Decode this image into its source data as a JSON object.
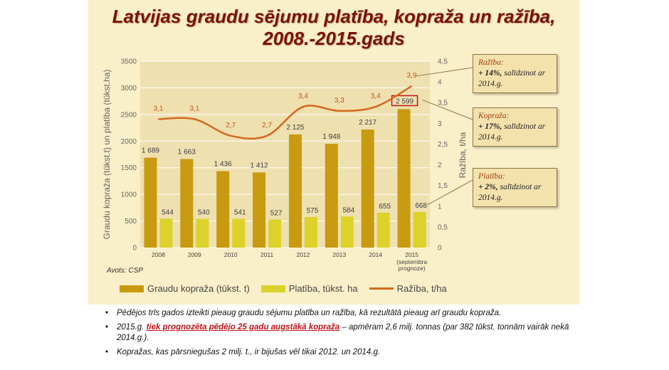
{
  "title": "Latvijas graudu sējumu platība, kopraža un ražība, 2008.-2015.gads",
  "source": "Avots: CSP",
  "chart_data": {
    "type": "bar",
    "categories": [
      "2008",
      "2009",
      "2010",
      "2011",
      "2012",
      "2013",
      "2014",
      "2015"
    ],
    "category_sublabel": "(septembra prognoze)",
    "series": [
      {
        "name": "Graudu kopraža (tūkst. t)",
        "type": "bar",
        "axis": "left",
        "color": "#c89a10",
        "values": [
          1689,
          1663,
          1436,
          1412,
          2125,
          1948,
          2217,
          2599
        ],
        "labels": [
          "1 689",
          "1 663",
          "1 436",
          "1 412",
          "2 125",
          "1 948",
          "2 217",
          "2 599"
        ]
      },
      {
        "name": "Platība, tūkst. ha",
        "type": "bar",
        "axis": "left",
        "color": "#dcd22a",
        "values": [
          544,
          540,
          541,
          527,
          575,
          584,
          655,
          668
        ],
        "labels": [
          "544",
          "540",
          "541",
          "527",
          "575",
          "584",
          "655",
          "668"
        ]
      },
      {
        "name": "Ražība, t/ha",
        "type": "line",
        "axis": "right",
        "color": "#d2691e",
        "values": [
          3.1,
          3.1,
          2.7,
          2.7,
          3.4,
          3.3,
          3.4,
          3.9
        ],
        "labels": [
          "3,1",
          "3,1",
          "2,7",
          "2,7",
          "3,4",
          "3,3",
          "3,4",
          "3,9"
        ]
      }
    ],
    "ylabel": "Graudu kopraža (tūkst.t) un platība (tūkst.ha)",
    "y2label": "Ražība, t/ha",
    "ylim": [
      0,
      3500
    ],
    "y2lim": [
      0,
      4.5
    ],
    "yticks": [
      "0",
      "500",
      "1000",
      "1500",
      "2000",
      "2500",
      "3000",
      "3500"
    ],
    "y2ticks": [
      "0",
      "0,5",
      "1",
      "1,5",
      "2",
      "2,5",
      "3",
      "3,5",
      "4",
      "4,5"
    ],
    "grid": true,
    "legend_position": "bottom",
    "highlighted_label": "2 599"
  },
  "callouts": [
    {
      "head": "Ražība:",
      "strong": "+ 14%,",
      "rest": " salīdzinot ar 2014.g."
    },
    {
      "head": "Kopraža:",
      "strong": "+ 17%,",
      "rest": " salīdzinot ar 2014.g."
    },
    {
      "head": "Platība:",
      "strong": "+ 2%,",
      "rest": " salīdzinot ar 2014.g."
    }
  ],
  "notes": {
    "n1": "Pēdējos trīs gados izteikti pieaug graudu sējumu platība un ražība, kā rezultātā pieaug arī graudu kopraža.",
    "n2_pre": "2015.g. ",
    "n2_highlight": "tiek prognozēta pēdējo 25 gadu augstākā kopraža",
    "n2_post": " – apmēram 2,6 milj. tonnas (par 382 tūkst. tonnām vairāk nekā 2014.g.).",
    "n3": "Kopražas, kas pārsniegušas 2 milj. t., ir bijušas vēl tikai 2012. un 2014.g."
  }
}
